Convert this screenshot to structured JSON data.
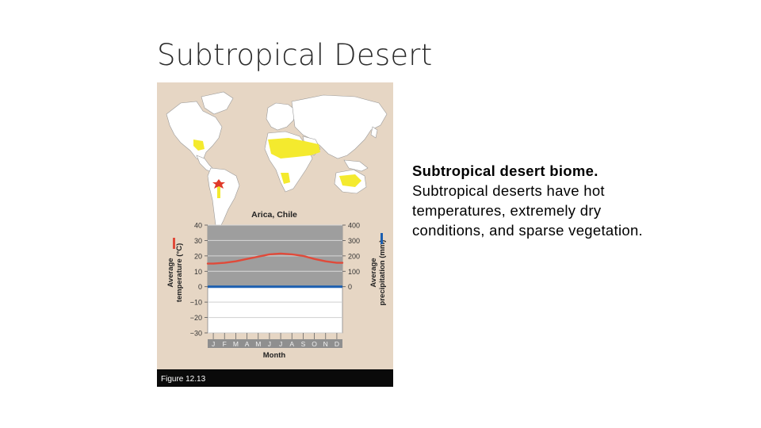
{
  "slide": {
    "title": "Subtropical Desert"
  },
  "figure": {
    "label": "Figure 12.13",
    "map_colors": {
      "background": "#e6d6c4",
      "land": "#ffffff",
      "ocean_border": "#9a9a9a",
      "biome": "#f4ea2e",
      "location_marker": "#e03a2a"
    },
    "chart_colors": {
      "precip_band": "#9e9e9e",
      "temperature_line": "#e04a3a",
      "precipitation_line": "#1c5fb0",
      "gridline": "#cfcfcf",
      "month_strip": "#8f8f8f"
    }
  },
  "chart_data": {
    "type": "line",
    "title": "Arica, Chile",
    "xlabel": "Month",
    "categories": [
      "J",
      "F",
      "M",
      "A",
      "M",
      "J",
      "J",
      "A",
      "S",
      "O",
      "N",
      "D"
    ],
    "left_axis": {
      "label_line1": "Average",
      "label_line2": "temperature (°C)",
      "ticks": [
        40,
        30,
        20,
        10,
        0,
        -10,
        -20,
        -30
      ],
      "tick_labels": [
        "40",
        "30",
        "20",
        "10",
        "0",
        "−10",
        "−20",
        "−30"
      ],
      "range": [
        -30,
        40
      ]
    },
    "right_axis": {
      "label_line1": "Average",
      "label_line2": "precipitation (mm)",
      "ticks": [
        400,
        300,
        200,
        100,
        0
      ],
      "range": [
        0,
        400
      ]
    },
    "series": [
      {
        "axis": "left",
        "values": [
          15,
          15.5,
          16.5,
          18,
          19.5,
          21,
          21.5,
          21,
          20,
          18,
          16.5,
          15.5
        ]
      },
      {
        "axis": "right",
        "values": [
          0,
          0,
          0,
          0,
          0,
          0,
          0,
          0,
          0,
          0,
          0,
          0
        ]
      }
    ]
  },
  "caption": {
    "title": "Subtropical desert biome.",
    "body": "Subtropical deserts have hot temperatures, extremely dry conditions, and sparse vegetation."
  }
}
